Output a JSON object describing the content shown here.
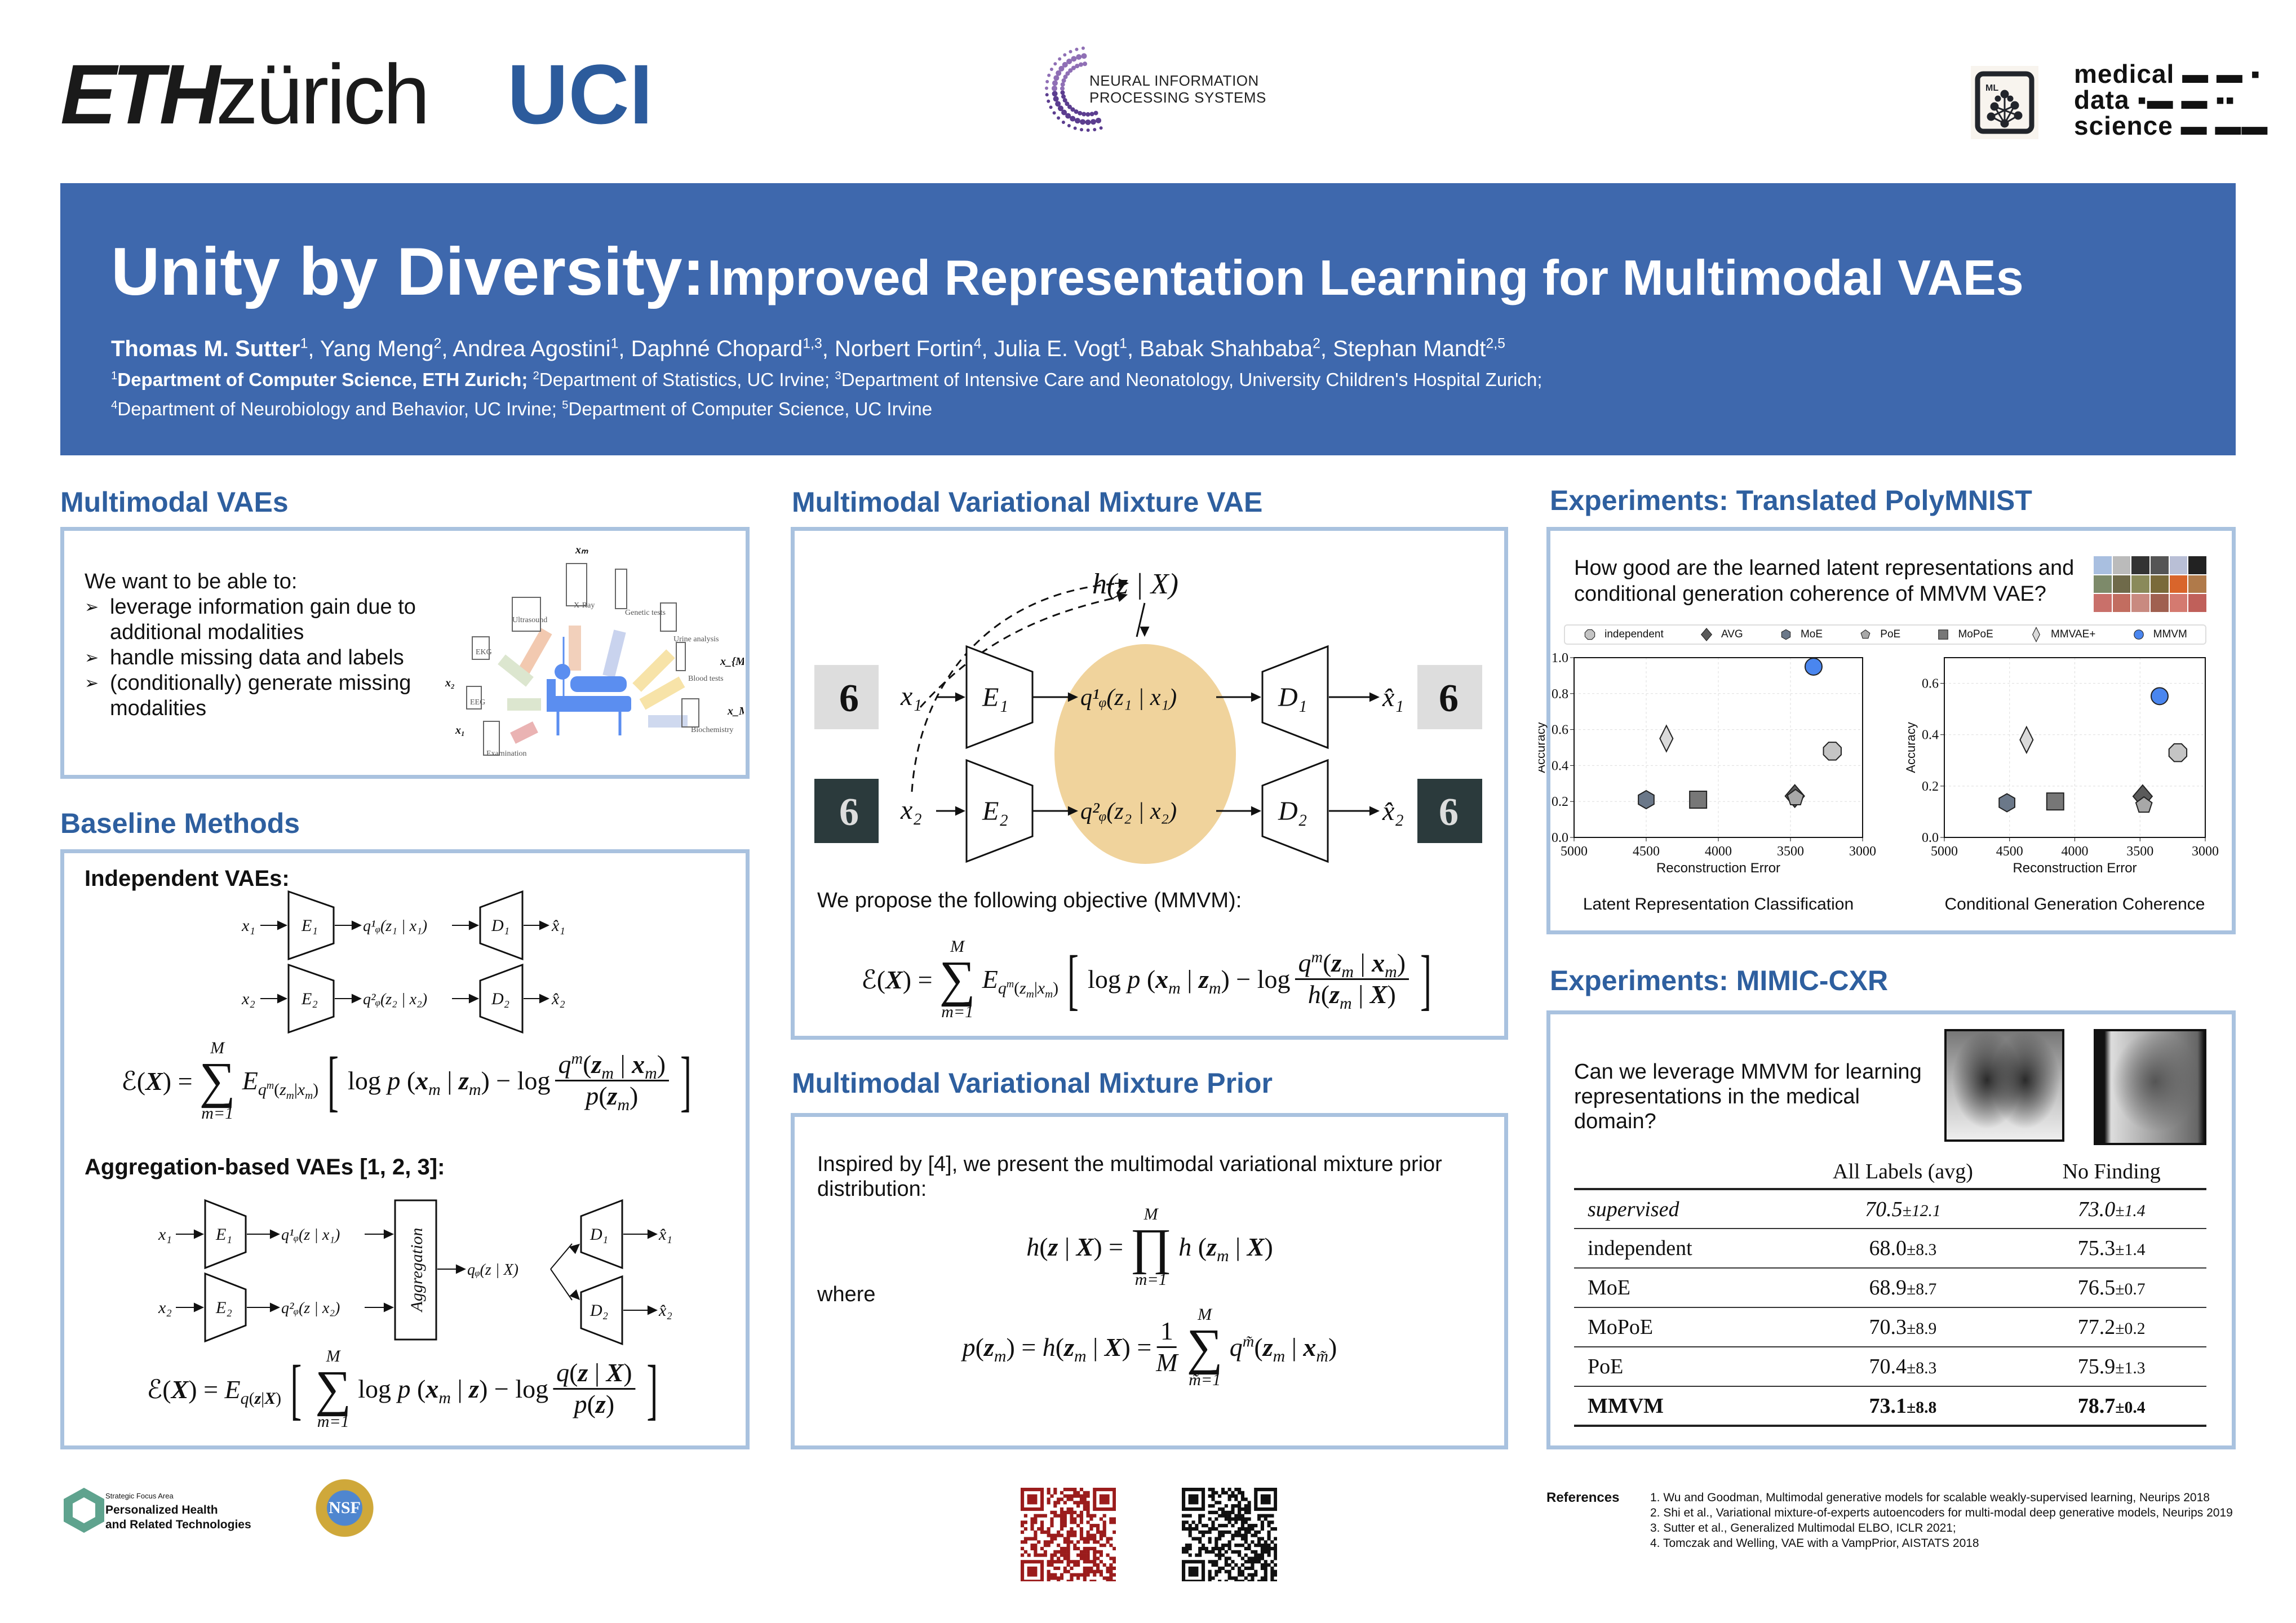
{
  "logos": {
    "eth_bold": "ETH",
    "eth_light": "zürich",
    "uci": "UCI",
    "neurips": [
      "NEURAL INFORMATION",
      "PROCESSING SYSTEMS"
    ],
    "mds_icon": "ML",
    "mds": [
      "medical",
      "data",
      "science"
    ],
    "sfa_small": "Strategic Focus Area",
    "sfa_big": [
      "Personalized Health",
      "and Related Technologies"
    ],
    "nsf": "NSF"
  },
  "banner": {
    "title_main": "Unity by Diversity:",
    "title_sub": "Improved Representation Learning for Multimodal VAEs",
    "authors": [
      {
        "name": "Thomas M. Sutter",
        "sup": "1",
        "bold": true
      },
      {
        "name": "Yang Meng",
        "sup": "2"
      },
      {
        "name": "Andrea Agostini",
        "sup": "1"
      },
      {
        "name": "Daphné Chopard",
        "sup": "1,3"
      },
      {
        "name": "Norbert Fortin",
        "sup": "4"
      },
      {
        "name": "Julia E. Vogt",
        "sup": "1"
      },
      {
        "name": "Babak Shahbaba",
        "sup": "2"
      },
      {
        "name": "Stephan Mandt",
        "sup": "2,5"
      }
    ],
    "affiliations_line1": [
      {
        "sup": "1",
        "text": "Department of Computer Science, ETH Zurich;",
        "bold": true
      },
      {
        "sup": "2",
        "text": "Department of Statistics, UC Irvine;"
      },
      {
        "sup": "3",
        "text": "Department of Intensive Care and Neonatology, University Children's Hospital Zurich;"
      }
    ],
    "affiliations_line2": [
      {
        "sup": "4",
        "text": "Department of Neurobiology and Behavior, UC Irvine;"
      },
      {
        "sup": "5",
        "text": "Department of Computer Science, UC Irvine"
      }
    ]
  },
  "multimodal_vaes": {
    "heading": "Multimodal VAEs",
    "intro": "We want to be able to:",
    "bullets": [
      [
        "leverage information gain due to",
        "additional modalities"
      ],
      [
        "handle missing data and labels"
      ],
      [
        "(conditionally) generate missing",
        "modalities"
      ]
    ],
    "bullet_icon": "arrowhead-bullet-icon",
    "illustration": {
      "modalities": [
        "Ultrasound",
        "X-Ray",
        "Genetic tests",
        "Urine analysis",
        "Blood tests",
        "Biochemistry",
        "Examination",
        "EEG",
        "EKG"
      ],
      "vars": [
        "xₘ",
        "x_{M−1}",
        "x_M",
        "x₂",
        "x₁"
      ],
      "accent": "#5b8ef0"
    }
  },
  "baseline": {
    "heading": "Baseline Methods",
    "independent_label": "Independent VAEs",
    "aggregation_label": "Aggregation-based VAEs [1, 2, 3]",
    "aggregation_box": "Aggregation",
    "q_joint": "qᵩ(z  | X)",
    "q1_agg": "q¹ᵩ(z  | x₁)",
    "q2_agg": "q²ᵩ(z  | x₂)",
    "eq_independent": [
      "ℰ(<b><i>X</i></b>) =",
      {
        "op": "∑",
        "top": "M",
        "bot": "m=1"
      },
      "<i>E</i><sub><i>q<sup>m</sup></i>(<i>z<sub>m</sub></i>|<i>x<sub>m</sub></i>)</sub>",
      {
        "br": "["
      },
      "log <i>p</i> (<b><i>x</i></b><sub><i>m</i></sub> | <b><i>z</i></b><sub><i>m</i></sub>) − log",
      {
        "num": "<i>q<sup>m</sup></i>(<b><i>z</i></b><sub><i>m</i></sub> | <b><i>x</i></b><sub><i>m</i></sub>)",
        "den": "<i>p</i>(<b><i>z</i></b><sub><i>m</i></sub>)"
      },
      {
        "br": "]"
      }
    ],
    "eq_aggregation": [
      "ℰ(<b><i>X</i></b>) = <i>E</i><sub><i>q</i>(<b><i>z</i></b>|<b><i>X</i></b>)</sub>",
      {
        "br": "["
      },
      {
        "op": "∑",
        "top": "M",
        "bot": "m=1"
      },
      "log <i>p</i> (<b><i>x</i></b><sub><i>m</i></sub> | <b><i>z</i></b>) − log",
      {
        "num": "<i>q</i>(<b><i>z</i></b> | <b><i>X</i></b>)",
        "den": "<i>p</i>(<b><i>z</i></b>)"
      },
      {
        "br": "]"
      }
    ]
  },
  "diagram": {
    "x1": "x₁",
    "x2": "x₂",
    "E1": "E₁",
    "E2": "E₂",
    "q1": "q¹ᵩ(z₁ | x₁)",
    "q2": "q²ᵩ(z₂ | x₂)",
    "D1": "D₁",
    "D2": "D₂",
    "xhat1": "x̂₁",
    "xhat2": "x̂₂",
    "prior": "h(z | X)",
    "ellipse_color": "#f0d39c"
  },
  "mmvm_vae": {
    "heading": "Multimodal Variational Mixture VAE",
    "objective_intro": "We propose the following objective (MMVM):",
    "eq_objective": [
      "ℰ(<b><i>X</i></b>) =",
      {
        "op": "∑",
        "top": "M",
        "bot": "m=1"
      },
      "<i>E</i><sub><i>q<sup>m</sup></i>(<i>z<sub>m</sub></i>|<i>x<sub>m</sub></i>)</sub>",
      {
        "br": "["
      },
      "log <i>p</i> (<b><i>x</i></b><sub><i>m</i></sub> | <b><i>z</i></b><sub><i>m</i></sub>) − log",
      {
        "num": "<i>q<sup>m</sup></i>(<b><i>z</i></b><sub><i>m</i></sub> | <b><i>x</i></b><sub><i>m</i></sub>)",
        "den": "<i>h</i>(<b><i>z</i></b><sub><i>m</i></sub> | <b><i>X</i></b>)"
      },
      {
        "br": "]"
      }
    ]
  },
  "mmvm_prior": {
    "heading": "Multimodal Variational Mixture Prior",
    "intro": [
      "Inspired by [4], we present the multimodal variational mixture prior",
      "distribution:"
    ],
    "where": "where",
    "eq_h": [
      "<i>h</i>(<b><i>z</i></b> | <b><i>X</i></b>) =",
      {
        "op": "∏",
        "top": "M",
        "bot": "m=1"
      },
      "<i>h</i> (<b><i>z</i></b><sub><i>m</i></sub> | <b><i>X</i></b>)"
    ],
    "eq_p": [
      "<i>p</i>(<b><i>z</i></b><sub><i>m</i></sub>) = <i>h</i>(<b><i>z</i></b><sub><i>m</i></sub> | <b><i>X</i></b>) =",
      {
        "num": "1",
        "den": "<i>M</i>"
      },
      {
        "op": "∑",
        "top": "M",
        "bot": "m̃=1"
      },
      "<i>q<sup>m̃</sup></i>(<b><i>z</i></b><sub><i>m</i></sub> | <b><i>x</i></b><sub><i>m̃</i></sub>)"
    ]
  },
  "polymnist": {
    "heading": "Experiments: Translated PolyMNIST",
    "question": [
      "How good are the learned latent representations and",
      "conditional generation coherence of MMVM VAE?"
    ]
  },
  "chart_data": [
    {
      "type": "scatter",
      "title": "Latent Representation Classification",
      "xlabel": "Reconstruction Error",
      "ylabel": "Accuracy",
      "xlim": [
        5000,
        3000
      ],
      "x_reversed": true,
      "ylim": [
        0,
        1.0
      ],
      "xticks": [
        5000,
        4500,
        4000,
        3500,
        3000
      ],
      "yticks": [
        0.0,
        0.2,
        0.4,
        0.6,
        0.8,
        1.0
      ],
      "grid": true,
      "legend": "top (shared)",
      "series": [
        {
          "name": "independent",
          "marker": "octagon",
          "color": "#c4c4c4",
          "x": 3210,
          "y": 0.48
        },
        {
          "name": "AVG",
          "marker": "diamond",
          "color": "#5a5a5a",
          "x": 3470,
          "y": 0.23
        },
        {
          "name": "MoE",
          "marker": "hexagon",
          "color": "#6b7889",
          "x": 4500,
          "y": 0.21
        },
        {
          "name": "PoE",
          "marker": "pentagon",
          "color": "#a8a8a8",
          "x": 3465,
          "y": 0.22
        },
        {
          "name": "MoPoE",
          "marker": "square",
          "color": "#777777",
          "x": 4140,
          "y": 0.21
        },
        {
          "name": "MMVAE+",
          "marker": "thin_diamond",
          "color": "#dadada",
          "x": 4360,
          "y": 0.55
        },
        {
          "name": "MMVM",
          "marker": "circle",
          "color": "#4a86ef",
          "x": 3340,
          "y": 0.95
        }
      ]
    },
    {
      "type": "scatter",
      "title": "Conditional Generation Coherence",
      "xlabel": "Reconstruction Error",
      "ylabel": "Accuracy",
      "xlim": [
        5000,
        3000
      ],
      "x_reversed": true,
      "ylim": [
        0,
        0.7
      ],
      "xticks": [
        5000,
        4500,
        4000,
        3500,
        3000
      ],
      "yticks": [
        0.0,
        0.2,
        0.4,
        0.6
      ],
      "grid": true,
      "series": [
        {
          "name": "independent",
          "marker": "octagon",
          "color": "#c4c4c4",
          "x": 3210,
          "y": 0.33
        },
        {
          "name": "AVG",
          "marker": "diamond",
          "color": "#5a5a5a",
          "x": 3480,
          "y": 0.16
        },
        {
          "name": "MoE",
          "marker": "hexagon",
          "color": "#6b7889",
          "x": 4520,
          "y": 0.135
        },
        {
          "name": "PoE",
          "marker": "pentagon",
          "color": "#a8a8a8",
          "x": 3470,
          "y": 0.125
        },
        {
          "name": "MoPoE",
          "marker": "square",
          "color": "#777777",
          "x": 4150,
          "y": 0.14
        },
        {
          "name": "MMVAE+",
          "marker": "thin_diamond",
          "color": "#dadada",
          "x": 4370,
          "y": 0.38
        },
        {
          "name": "MMVM",
          "marker": "circle",
          "color": "#4a86ef",
          "x": 3350,
          "y": 0.55
        }
      ]
    }
  ],
  "mimic": {
    "heading": "Experiments: MIMIC-CXR",
    "question": [
      "Can we leverage MMVM for learning",
      "representations in the medical",
      "domain?"
    ],
    "table": {
      "columns": [
        "",
        "All Labels (avg)",
        "No Finding"
      ],
      "rows": [
        {
          "method": "supervised",
          "all": "70.5",
          "all_pm": "±12.1",
          "nf": "73.0",
          "nf_pm": "±1.4",
          "italic": true
        },
        {
          "method": "independent",
          "all": "68.0",
          "all_pm": "±8.3",
          "nf": "75.3",
          "nf_pm": "±1.4"
        },
        {
          "method": "MoE",
          "all": "68.9",
          "all_pm": "±8.7",
          "nf": "76.5",
          "nf_pm": "±0.7"
        },
        {
          "method": "MoPoE",
          "all": "70.3",
          "all_pm": "±8.9",
          "nf": "77.2",
          "nf_pm": "±0.2"
        },
        {
          "method": "PoE",
          "all": "70.4",
          "all_pm": "±8.3",
          "nf": "75.9",
          "nf_pm": "±1.3"
        },
        {
          "method": "MMVM",
          "all": "73.1",
          "all_pm": "±8.8",
          "nf": "78.7",
          "nf_pm": "±0.4",
          "bold": true
        }
      ]
    }
  },
  "references": {
    "label": "References",
    "items": [
      "1. Wu and Goodman, Multimodal generative models for scalable weakly-supervised learning, Neurips 2018",
      "2. Shi et al., Variational mixture-of-experts autoencoders for multi-modal deep generative models, Neurips 2019",
      "3. Sutter et al., Generalized Multimodal ELBO, ICLR 2021;",
      "4. Tomczak and Welling, VAE with a VampPrior, AISTATS 2018"
    ]
  },
  "qr_codes": [
    {
      "color": "#9b1c1c"
    },
    {
      "color": "#111111"
    }
  ]
}
